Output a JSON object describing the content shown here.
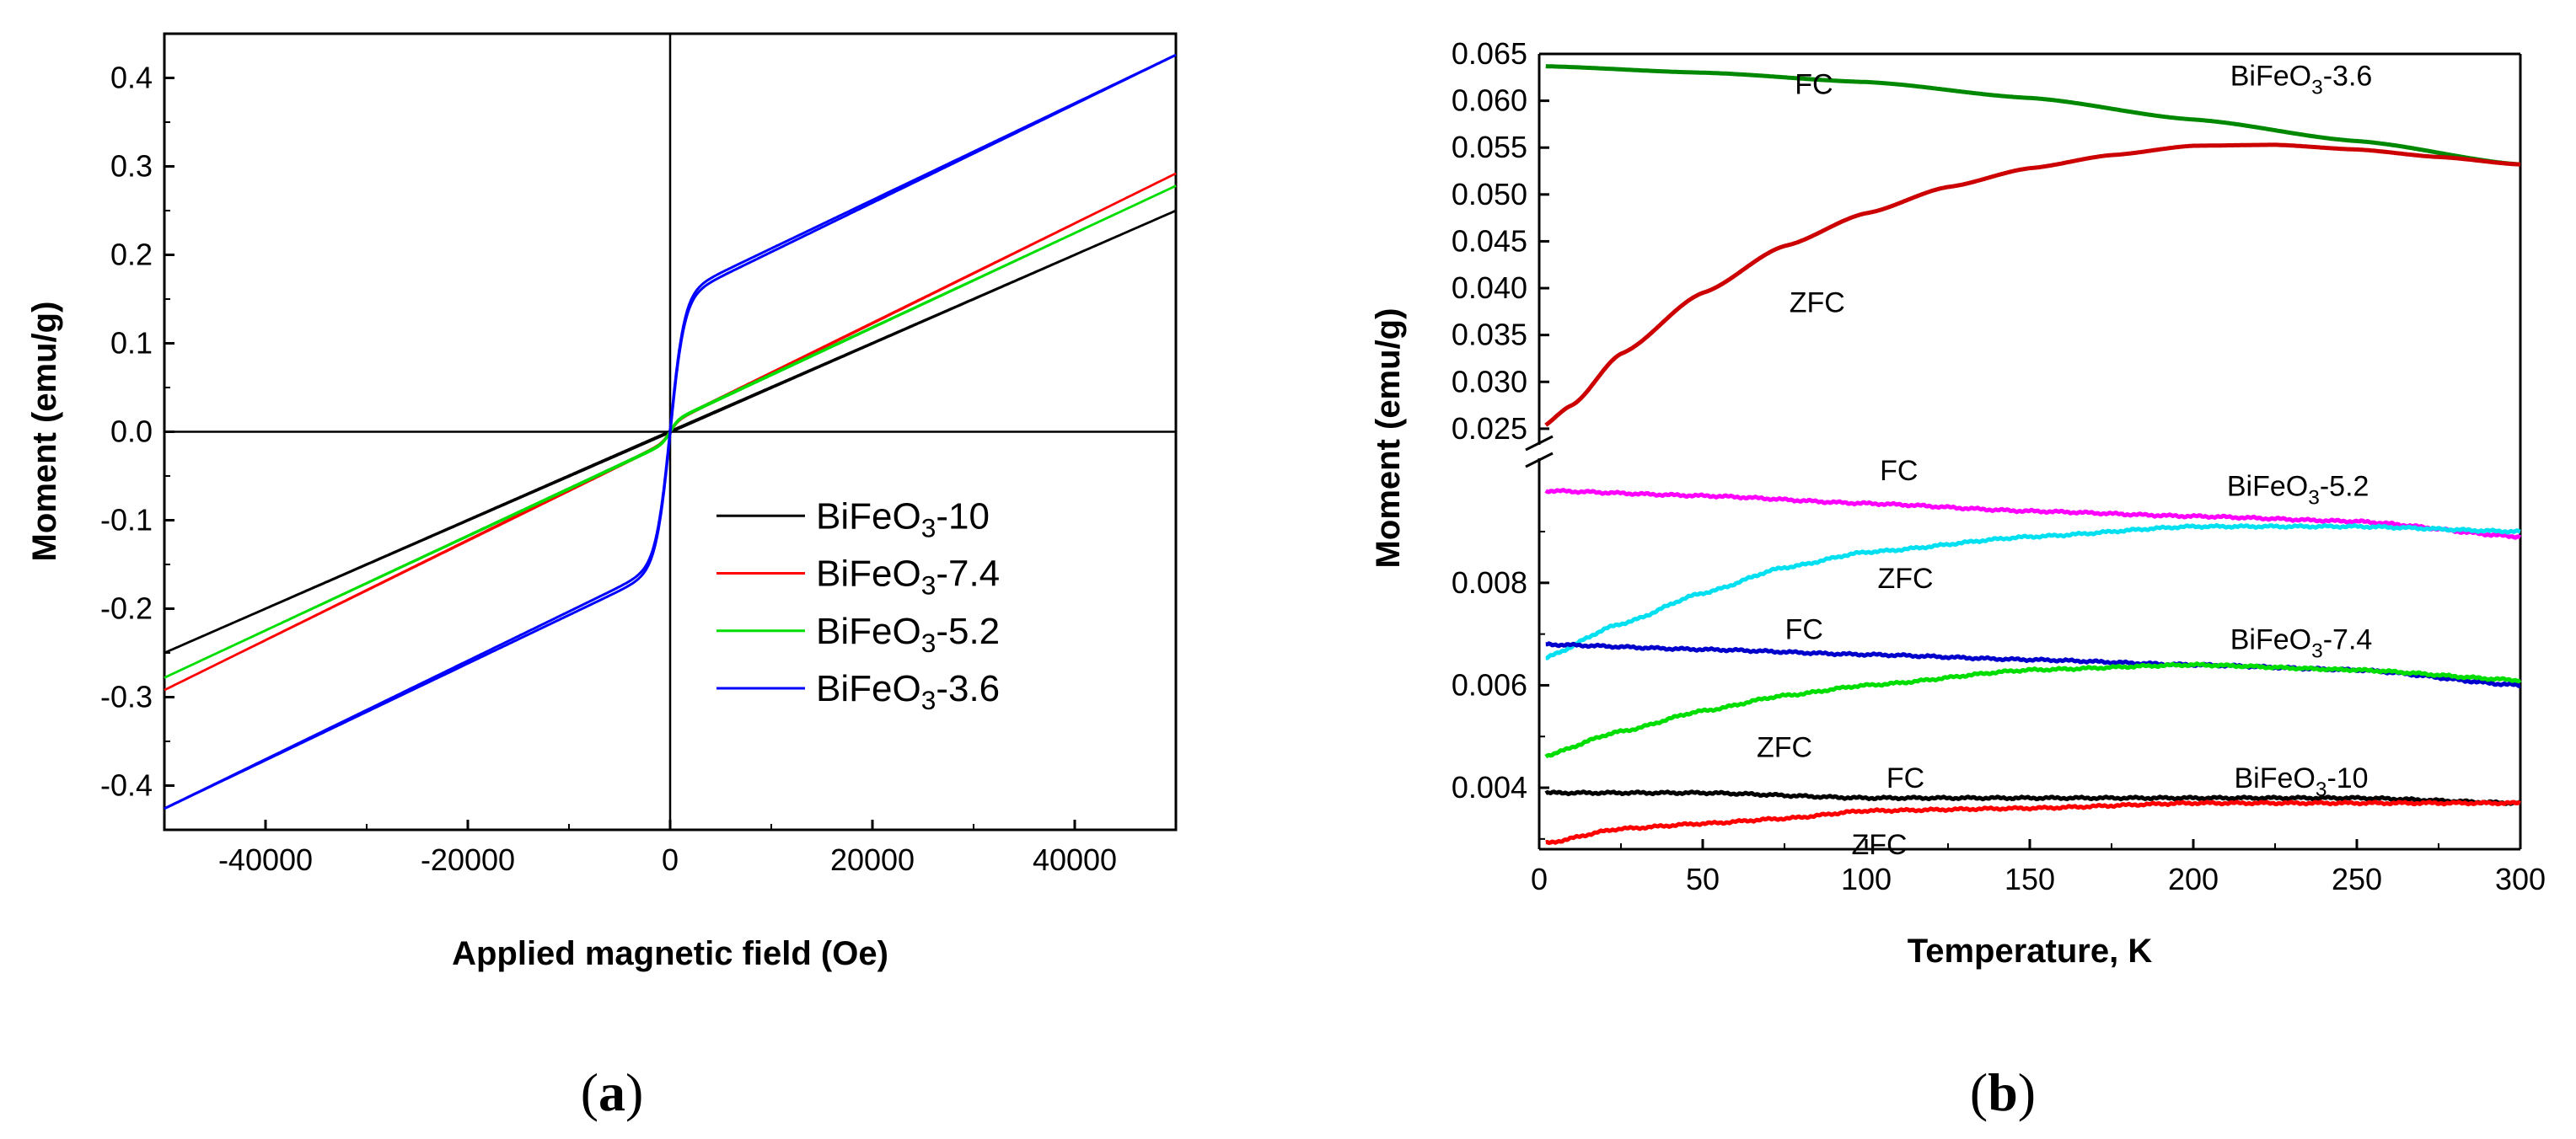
{
  "panel_a_label": {
    "open": "(",
    "letter": "a",
    "close": ")"
  },
  "panel_b_label": {
    "open": "(",
    "letter": "b",
    "close": ")"
  },
  "chart_data": [
    {
      "type": "line",
      "panel": "a",
      "title": "",
      "xlabel": "Applied magnetic field (Oe)",
      "ylabel": "Moment (emu/g)",
      "xlim": [
        -50000,
        50000
      ],
      "ylim": [
        -0.45,
        0.45
      ],
      "x_ticks": [
        -40000,
        -20000,
        0,
        20000,
        40000
      ],
      "x_tick_labels": [
        "-40000",
        "-20000",
        "0",
        "20000",
        "40000"
      ],
      "y_ticks": [
        -0.4,
        -0.3,
        -0.2,
        -0.1,
        0.0,
        0.1,
        0.2,
        0.3,
        0.4
      ],
      "y_tick_labels": [
        "-0.4",
        "-0.3",
        "-0.2",
        "-0.1",
        "0.0",
        "0.1",
        "0.2",
        "0.3",
        "0.4"
      ],
      "grid": false,
      "legend_position": "center-right",
      "series": [
        {
          "name": "BiFeO3-10",
          "label_main": "BiFeO",
          "label_sub": "3",
          "label_suffix": "-10",
          "color": "#000000",
          "linear_slope_per_1e4": 0.05,
          "ferro_ms": 0.0,
          "ferro_h0": 800
        },
        {
          "name": "BiFeO3-7.4",
          "label_main": "BiFeO",
          "label_sub": "3",
          "label_suffix": "-7.4",
          "color": "#ff0000",
          "linear_slope_per_1e4": 0.0564,
          "ferro_ms": 0.01,
          "ferro_h0": 800
        },
        {
          "name": "BiFeO3-5.2",
          "label_main": "BiFeO",
          "label_sub": "3",
          "label_suffix": "-5.2",
          "color": "#00dd00",
          "linear_slope_per_1e4": 0.0534,
          "ferro_ms": 0.011,
          "ferro_h0": 800
        },
        {
          "name": "BiFeO3-3.6",
          "label_main": "BiFeO",
          "label_sub": "3",
          "label_suffix": "-3.6",
          "color": "#0000ff",
          "linear_slope_per_1e4": 0.0552,
          "ferro_ms": 0.15,
          "ferro_h0": 1400
        }
      ]
    },
    {
      "type": "line",
      "panel": "b",
      "title": "",
      "xlabel": "Temperature, K",
      "ylabel": "Moment (emu/g)",
      "xlim": [
        0,
        300
      ],
      "x_ticks": [
        0,
        50,
        100,
        150,
        200,
        250,
        300
      ],
      "x_tick_labels": [
        "0",
        "50",
        "100",
        "150",
        "200",
        "250",
        "300"
      ],
      "axis_break": true,
      "upper_ylim": [
        0.024,
        0.065
      ],
      "upper_y_ticks": [
        0.025,
        0.03,
        0.035,
        0.04,
        0.045,
        0.05,
        0.055,
        0.06,
        0.065
      ],
      "upper_y_tick_labels": [
        "0.025",
        "0.030",
        "0.035",
        "0.040",
        "0.045",
        "0.050",
        "0.055",
        "0.060",
        "0.065"
      ],
      "lower_ylim": [
        0.0028,
        0.0103
      ],
      "lower_y_ticks": [
        0.004,
        0.006,
        0.008
      ],
      "lower_y_tick_labels": [
        "0.004",
        "0.006",
        "0.008"
      ],
      "grid": false,
      "series": [
        {
          "name": "BiFeO3-3.6 FC",
          "sample": "BiFeO3-3.6",
          "mode": "FC",
          "color": "#008800",
          "segment": "upper",
          "x": [
            0,
            50,
            100,
            150,
            200,
            250,
            300
          ],
          "y": [
            0.0637,
            0.063,
            0.062,
            0.0603,
            0.058,
            0.0557,
            0.0532
          ]
        },
        {
          "name": "BiFeO3-3.6 ZFC",
          "sample": "BiFeO3-3.6",
          "mode": "ZFC",
          "color": "#cc0000",
          "segment": "upper",
          "x": [
            0,
            10,
            25,
            50,
            75,
            100,
            125,
            150,
            175,
            200,
            225,
            250,
            275,
            300
          ],
          "y": [
            0.025,
            0.0275,
            0.033,
            0.0395,
            0.0445,
            0.048,
            0.0508,
            0.0528,
            0.0542,
            0.0552,
            0.0553,
            0.0548,
            0.054,
            0.0532
          ]
        },
        {
          "name": "BiFeO3-5.2 FC",
          "sample": "BiFeO3-5.2",
          "mode": "FC",
          "color": "#ff00ff",
          "segment": "lower",
          "x": [
            0,
            50,
            100,
            150,
            200,
            250,
            300
          ],
          "y": [
            0.0098,
            0.0097,
            0.00955,
            0.0094,
            0.0093,
            0.0092,
            0.0089
          ]
        },
        {
          "name": "BiFeO3-5.2 ZFC",
          "sample": "BiFeO3-5.2",
          "mode": "ZFC",
          "color": "#00e0f0",
          "segment": "lower",
          "x": [
            0,
            25,
            50,
            75,
            100,
            150,
            200,
            250,
            300
          ],
          "y": [
            0.0065,
            0.0072,
            0.0078,
            0.0083,
            0.0086,
            0.0089,
            0.0091,
            0.0091,
            0.009
          ]
        },
        {
          "name": "BiFeO3-7.4 FC",
          "sample": "BiFeO3-7.4",
          "mode": "FC",
          "color": "#0000cc",
          "segment": "lower",
          "x": [
            0,
            50,
            100,
            150,
            200,
            250,
            300
          ],
          "y": [
            0.0068,
            0.0067,
            0.0066,
            0.0065,
            0.0064,
            0.0063,
            0.006
          ]
        },
        {
          "name": "BiFeO3-7.4 ZFC",
          "sample": "BiFeO3-7.4",
          "mode": "ZFC",
          "color": "#00dd00",
          "segment": "lower",
          "x": [
            0,
            25,
            50,
            75,
            100,
            150,
            200,
            250,
            300
          ],
          "y": [
            0.0046,
            0.0051,
            0.0055,
            0.0058,
            0.006,
            0.0063,
            0.0064,
            0.0063,
            0.0061
          ]
        },
        {
          "name": "BiFeO3-10 FC",
          "sample": "BiFeO3-10",
          "mode": "FC",
          "color": "#000000",
          "segment": "lower",
          "x": [
            0,
            50,
            100,
            150,
            200,
            250,
            300
          ],
          "y": [
            0.0039,
            0.0039,
            0.0038,
            0.0038,
            0.0038,
            0.0038,
            0.0037
          ]
        },
        {
          "name": "BiFeO3-10 ZFC",
          "sample": "BiFeO3-10",
          "mode": "ZFC",
          "color": "#ff0000",
          "segment": "lower",
          "x": [
            0,
            25,
            50,
            75,
            100,
            150,
            200,
            250,
            300
          ],
          "y": [
            0.0029,
            0.0032,
            0.0033,
            0.0034,
            0.00355,
            0.0036,
            0.0037,
            0.0037,
            0.0037
          ]
        }
      ],
      "annotations": [
        {
          "id": "fc-36",
          "text": "FC",
          "x": 84,
          "y": 0.0618,
          "segment": "upper"
        },
        {
          "id": "zfc-36",
          "text": "ZFC",
          "x": 85,
          "y": 0.0385,
          "segment": "upper"
        },
        {
          "id": "lbl-36",
          "main": "BiFeO",
          "sub": "3",
          "suffix": "-3.6",
          "x": 233,
          "y": 0.0627,
          "segment": "upper"
        },
        {
          "id": "fc-52",
          "text": "FC",
          "x": 110,
          "y": 0.0102,
          "segment": "lower"
        },
        {
          "id": "lbl-52",
          "main": "BiFeO",
          "sub": "3",
          "suffix": "-5.2",
          "x": 232,
          "y": 0.0099,
          "segment": "lower"
        },
        {
          "id": "zfc-52",
          "text": "ZFC",
          "x": 112,
          "y": 0.0081,
          "segment": "lower"
        },
        {
          "id": "fc-74",
          "text": "FC",
          "x": 81,
          "y": 0.0071,
          "segment": "lower"
        },
        {
          "id": "lbl-74",
          "main": "BiFeO",
          "sub": "3",
          "suffix": "-7.4",
          "x": 233,
          "y": 0.0069,
          "segment": "lower"
        },
        {
          "id": "zfc-74",
          "text": "ZFC",
          "x": 75,
          "y": 0.0048,
          "segment": "lower"
        },
        {
          "id": "fc-10",
          "text": "FC",
          "x": 112,
          "y": 0.0042,
          "segment": "lower"
        },
        {
          "id": "lbl-10",
          "main": "BiFeO",
          "sub": "3",
          "suffix": "-10",
          "x": 233,
          "y": 0.0042,
          "segment": "lower"
        },
        {
          "id": "zfc-10",
          "text": "ZFC",
          "x": 104,
          "y": 0.0029,
          "segment": "lower"
        }
      ]
    }
  ]
}
